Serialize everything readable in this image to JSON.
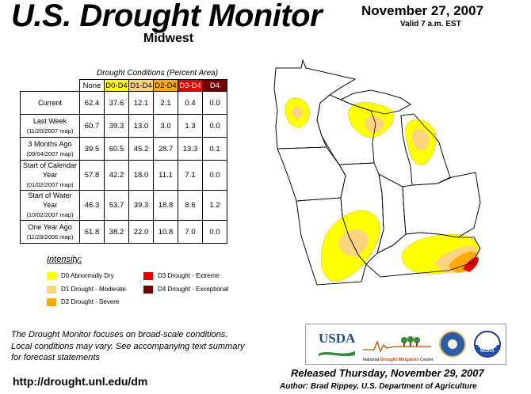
{
  "header": {
    "title": "U.S. Drought Monitor",
    "region": "Midwest",
    "date": "November 27, 2007",
    "valid": "Valid 7 a.m. EST"
  },
  "table": {
    "caption": "Drought Conditions (Percent Area)",
    "columns": [
      "None",
      "D0-D4",
      "D1-D4",
      "D2-D4",
      "D3-D4",
      "D4"
    ],
    "rows": [
      {
        "label": "Current",
        "sub": "",
        "values": [
          "62.4",
          "37.6",
          "12.1",
          "2.1",
          "0.4",
          "0.0"
        ]
      },
      {
        "label": "Last Week",
        "sub": "(11/20/2007 map)",
        "values": [
          "60.7",
          "39.3",
          "13.0",
          "3.0",
          "1.3",
          "0.0"
        ]
      },
      {
        "label": "3 Months Ago",
        "sub": "(09/04/2007 map)",
        "values": [
          "39.5",
          "60.5",
          "45.2",
          "28.7",
          "13.3",
          "0.1"
        ]
      },
      {
        "label": "Start of Calendar Year",
        "sub": "(01/02/2007 map)",
        "values": [
          "57.8",
          "42.2",
          "18.0",
          "11.1",
          "7.1",
          "0.0"
        ]
      },
      {
        "label": "Start of Water Year",
        "sub": "(10/02/2007 map)",
        "values": [
          "46.3",
          "53.7",
          "39.3",
          "18.8",
          "8.6",
          "1.2"
        ]
      },
      {
        "label": "One Year Ago",
        "sub": "(11/28/2006 map)",
        "values": [
          "61.8",
          "38.2",
          "22.0",
          "10.8",
          "7.0",
          "0.0"
        ]
      }
    ]
  },
  "legend": {
    "title": "Intensity:",
    "items": [
      {
        "label": "D0 Abnormally Dry",
        "color": "#ffff00"
      },
      {
        "label": "D1 Drought - Moderate",
        "color": "#fcd37f"
      },
      {
        "label": "D2 Drought - Severe",
        "color": "#ffaa00"
      },
      {
        "label": "D3 Drought - Extreme",
        "color": "#e60000"
      },
      {
        "label": "D4 Drought - Exceptional",
        "color": "#730000"
      }
    ]
  },
  "note": {
    "line1": "The Drought Monitor focuses on broad-scale conditions.",
    "line2": "Local conditions may vary. See accompanying text summary",
    "line3": "for forecast statements"
  },
  "footer": {
    "url": "http://drought.unl.edu/dm",
    "released": "Released Thursday, November 29, 2007",
    "author": "Author: Brad Rippey, U.S. Department of Agriculture"
  },
  "logos": {
    "usda": "USDA",
    "ndmc_prefix": "National",
    "ndmc_main": "Drought Mitigation",
    "ndmc_suffix": "Center",
    "noaa": "NOAA"
  },
  "colors": {
    "none": "#ffffff",
    "d0": "#ffff00",
    "d1": "#fcd37f",
    "d2": "#ffaa00",
    "d3": "#e60000",
    "d4": "#730000"
  }
}
